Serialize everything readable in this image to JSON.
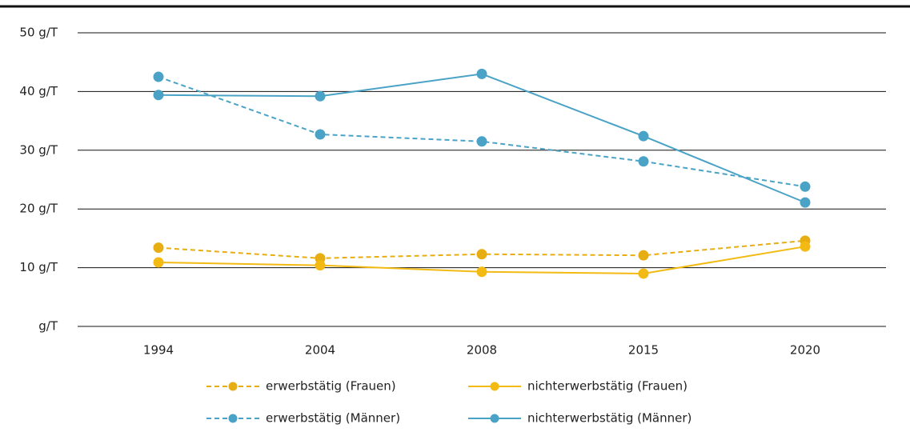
{
  "chart_data": {
    "type": "line",
    "categories": [
      "1994",
      "2004",
      "2008",
      "2015",
      "2020"
    ],
    "series": [
      {
        "name": "erwerbstätig (Frauen)",
        "color": "#e6ae12",
        "dashed": true,
        "values": [
          13.4,
          11.6,
          12.3,
          12.1,
          14.6
        ]
      },
      {
        "name": "nichterwerbstätig (Frauen)",
        "color": "#f2ba12",
        "dashed": false,
        "values": [
          10.9,
          10.4,
          9.3,
          9.0,
          13.6
        ]
      },
      {
        "name": "erwerbstätig (Männer)",
        "color": "#4aa3c6",
        "dashed": true,
        "values": [
          42.5,
          32.7,
          31.5,
          28.1,
          23.8
        ]
      },
      {
        "name": "nichterwerbstätig (Männer)",
        "color": "#4aa3c6",
        "dashed": false,
        "values": [
          39.4,
          39.2,
          43.0,
          32.4,
          21.1
        ]
      }
    ],
    "ylim": [
      0,
      50
    ],
    "yticks": [
      {
        "value": 0,
        "label": "g/T"
      },
      {
        "value": 10,
        "label": "10 g/T"
      },
      {
        "value": 20,
        "label": "20 g/T"
      },
      {
        "value": 30,
        "label": "30 g/T"
      },
      {
        "value": 40,
        "label": "40 g/T"
      },
      {
        "value": 50,
        "label": "50 g/T"
      }
    ],
    "grid": true
  }
}
